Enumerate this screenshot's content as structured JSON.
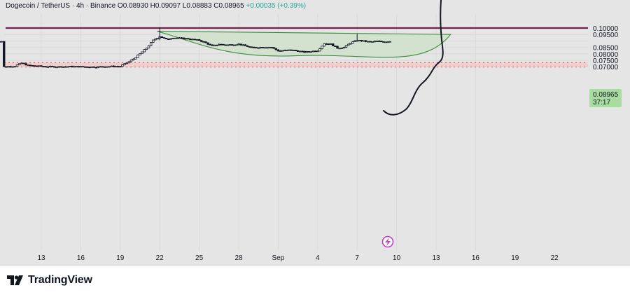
{
  "header": {
    "symbol": "Dogecoin / TetherUS",
    "interval": "4h",
    "exchange": "Binance",
    "open": "O0.08930",
    "high": "H0.09097",
    "low": "L0.08883",
    "close": "C0.08965",
    "change": "+0.00035 (+0.39%)"
  },
  "price_axis": {
    "ticks": [
      "0.10000",
      "0.09500",
      "0.08500",
      "0.08000",
      "0.07500",
      "0.07000"
    ],
    "current_price": "0.08965",
    "countdown": "37:17"
  },
  "time_axis": {
    "ticks": [
      "13",
      "16",
      "19",
      "22",
      "25",
      "28",
      "Sep",
      "4",
      "7",
      "10",
      "13",
      "16",
      "19",
      "22"
    ]
  },
  "branding": {
    "name": "TradingView"
  },
  "colors": {
    "up": "#26a69a",
    "resistance_line": "#7b1f4e",
    "support_zone_fill": "#f2c6c6",
    "support_zone_border": "#e05a5a",
    "cup_fill": "#d2e3ce",
    "cup_stroke": "#3c8a3c",
    "price_label_bg": "#a8dca0"
  },
  "chart_data": {
    "type": "candlestick",
    "pair": "DOGE/USDT",
    "timeframe": "4h",
    "y_axis": {
      "min": 0.0675,
      "max": 0.1035
    },
    "resistance_level": 0.1,
    "support_zone": [
      0.0697,
      0.0732
    ],
    "cup_pattern": {
      "rim_start": {
        "day": 21.8,
        "price": 0.0975
      },
      "bottom": {
        "day": 32.3,
        "price": 0.0785
      },
      "rim_end": {
        "day": 44.1,
        "price": 0.095
      }
    },
    "closes": [
      {
        "day": 10,
        "price": 0.0698
      },
      {
        "day": 11,
        "price": 0.0705
      },
      {
        "day": 11.5,
        "price": 0.0728
      },
      {
        "day": 12,
        "price": 0.071
      },
      {
        "day": 13,
        "price": 0.0703
      },
      {
        "day": 14,
        "price": 0.0699
      },
      {
        "day": 15,
        "price": 0.0701
      },
      {
        "day": 16,
        "price": 0.07
      },
      {
        "day": 17,
        "price": 0.0698
      },
      {
        "day": 18,
        "price": 0.0702
      },
      {
        "day": 19,
        "price": 0.0703
      },
      {
        "day": 19.6,
        "price": 0.0735
      },
      {
        "day": 20,
        "price": 0.076
      },
      {
        "day": 20.5,
        "price": 0.08
      },
      {
        "day": 21,
        "price": 0.0845
      },
      {
        "day": 21.5,
        "price": 0.0905
      },
      {
        "day": 22,
        "price": 0.0935
      },
      {
        "day": 22.5,
        "price": 0.0912
      },
      {
        "day": 23,
        "price": 0.0925
      },
      {
        "day": 24,
        "price": 0.0918
      },
      {
        "day": 25,
        "price": 0.0905
      },
      {
        "day": 25.5,
        "price": 0.0885
      },
      {
        "day": 26,
        "price": 0.086
      },
      {
        "day": 26.5,
        "price": 0.0875
      },
      {
        "day": 27,
        "price": 0.0868
      },
      {
        "day": 28,
        "price": 0.0875
      },
      {
        "day": 28.5,
        "price": 0.0862
      },
      {
        "day": 29,
        "price": 0.0848
      },
      {
        "day": 30,
        "price": 0.0852
      },
      {
        "day": 30.5,
        "price": 0.085
      },
      {
        "day": 31,
        "price": 0.0823
      },
      {
        "day": 32,
        "price": 0.083
      },
      {
        "day": 33,
        "price": 0.0813
      },
      {
        "day": 34,
        "price": 0.0825
      },
      {
        "day": 34.5,
        "price": 0.088
      },
      {
        "day": 35,
        "price": 0.0875
      },
      {
        "day": 35.5,
        "price": 0.0845
      },
      {
        "day": 36,
        "price": 0.085
      },
      {
        "day": 36.5,
        "price": 0.0885
      },
      {
        "day": 37,
        "price": 0.0905
      },
      {
        "day": 38,
        "price": 0.0892
      },
      {
        "day": 38.5,
        "price": 0.0898
      },
      {
        "day": 39,
        "price": 0.0893
      },
      {
        "day": 39.5,
        "price": 0.0897
      }
    ]
  }
}
